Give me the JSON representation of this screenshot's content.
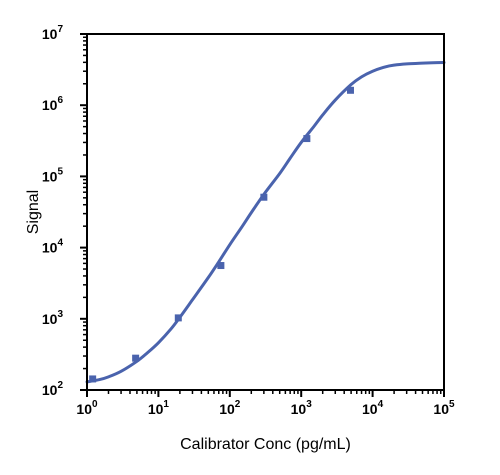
{
  "chart_data": {
    "type": "line",
    "title": "",
    "xlabel": "Calibrator Conc (pg/mL)",
    "ylabel": "Signal",
    "xscale": "log",
    "yscale": "log",
    "xlim": [
      1,
      100000
    ],
    "ylim": [
      100,
      10000000
    ],
    "grid": false,
    "legend": "none",
    "x_ticks": [
      {
        "base": "10",
        "exp": "0",
        "value": 1
      },
      {
        "base": "10",
        "exp": "1",
        "value": 10
      },
      {
        "base": "10",
        "exp": "2",
        "value": 100
      },
      {
        "base": "10",
        "exp": "3",
        "value": 1000
      },
      {
        "base": "10",
        "exp": "4",
        "value": 10000
      },
      {
        "base": "10",
        "exp": "5",
        "value": 100000
      }
    ],
    "y_ticks": [
      {
        "base": "10",
        "exp": "2",
        "value": 100
      },
      {
        "base": "10",
        "exp": "3",
        "value": 1000
      },
      {
        "base": "10",
        "exp": "4",
        "value": 10000
      },
      {
        "base": "10",
        "exp": "5",
        "value": 100000
      },
      {
        "base": "10",
        "exp": "6",
        "value": 1000000
      },
      {
        "base": "10",
        "exp": "7",
        "value": 10000000
      }
    ],
    "series": [
      {
        "kind": "points",
        "marker": "square",
        "color": "#4a63ad",
        "x": [
          1.2,
          4.8,
          19,
          75,
          300,
          1200,
          4900
        ],
        "y": [
          143,
          280,
          1030,
          5600,
          51000,
          340000,
          1620000
        ]
      },
      {
        "kind": "fit-curve",
        "color": "#4a63ad",
        "x": [
          1,
          1.5,
          2,
          3,
          5,
          7,
          10,
          15,
          20,
          30,
          50,
          70,
          100,
          150,
          200,
          300,
          500,
          700,
          1000,
          1500,
          2000,
          3000,
          5000,
          7000,
          10000,
          15000,
          20000,
          30000,
          50000,
          70000,
          100000
        ],
        "y": [
          130,
          140,
          153,
          183,
          253,
          332,
          460,
          720,
          1050,
          1850,
          3800,
          6300,
          11000,
          20000,
          31000,
          56000,
          110000,
          180000,
          300000,
          500000,
          730000,
          1180000,
          1950000,
          2500000,
          3000000,
          3450000,
          3650000,
          3800000,
          3900000,
          3950000,
          3980000
        ]
      }
    ]
  }
}
